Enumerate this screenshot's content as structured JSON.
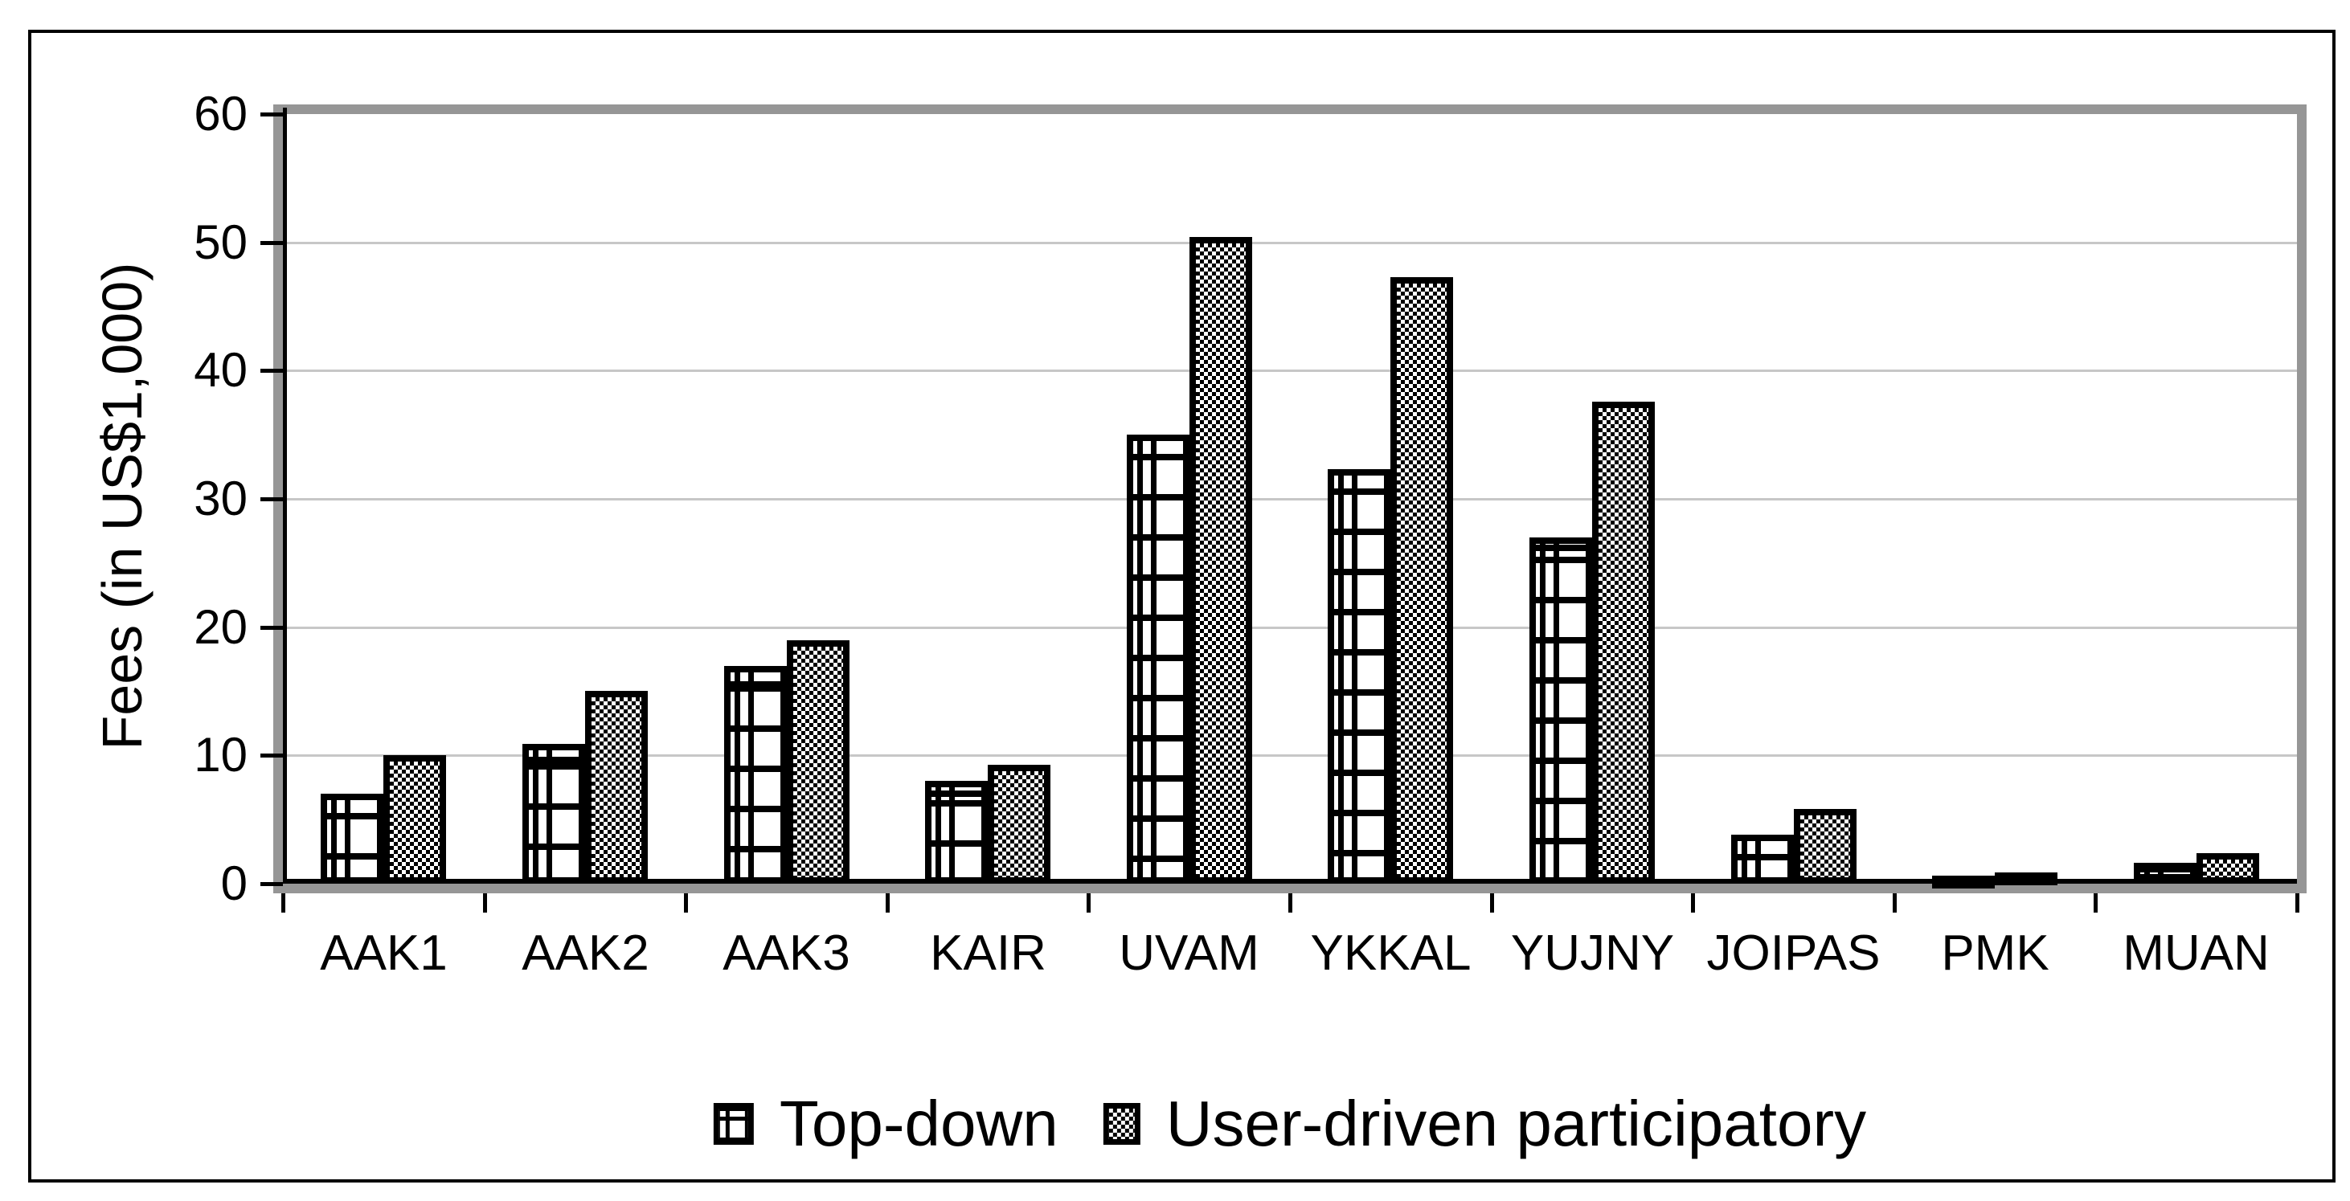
{
  "chart_data": {
    "type": "bar",
    "title": "",
    "ylabel": "Fees (in US$1,000)",
    "xlabel": "",
    "ylim": [
      0,
      60
    ],
    "ytick_step": 10,
    "ytick_labels": [
      "60",
      "50",
      "40",
      "30",
      "20",
      "10",
      "0"
    ],
    "grid": true,
    "legend_position": "bottom-center",
    "categories": [
      "AAK1",
      "AAK2",
      "AAK3",
      "KAIR",
      "UVAM",
      "YKKAL",
      "YUJNY",
      "JOIPAS",
      "PMK",
      "MUAN"
    ],
    "series": [
      {
        "name": "Top-down",
        "pattern": "grid",
        "values": [
          7.0,
          10.9,
          17.0,
          8.0,
          35.0,
          32.3,
          27.0,
          3.8,
          0.5,
          1.6
        ]
      },
      {
        "name": "User-driven participatory",
        "pattern": "checker",
        "values": [
          10.0,
          15.0,
          19.0,
          9.3,
          50.4,
          47.3,
          37.6,
          5.8,
          0.9,
          2.4
        ]
      }
    ],
    "colors": {
      "bar_fill": "#ffffff",
      "bar_border": "#000000",
      "frame": "#969696",
      "gridline": "#c7c7c7",
      "background": "#ffffff",
      "text": "#000000"
    }
  }
}
